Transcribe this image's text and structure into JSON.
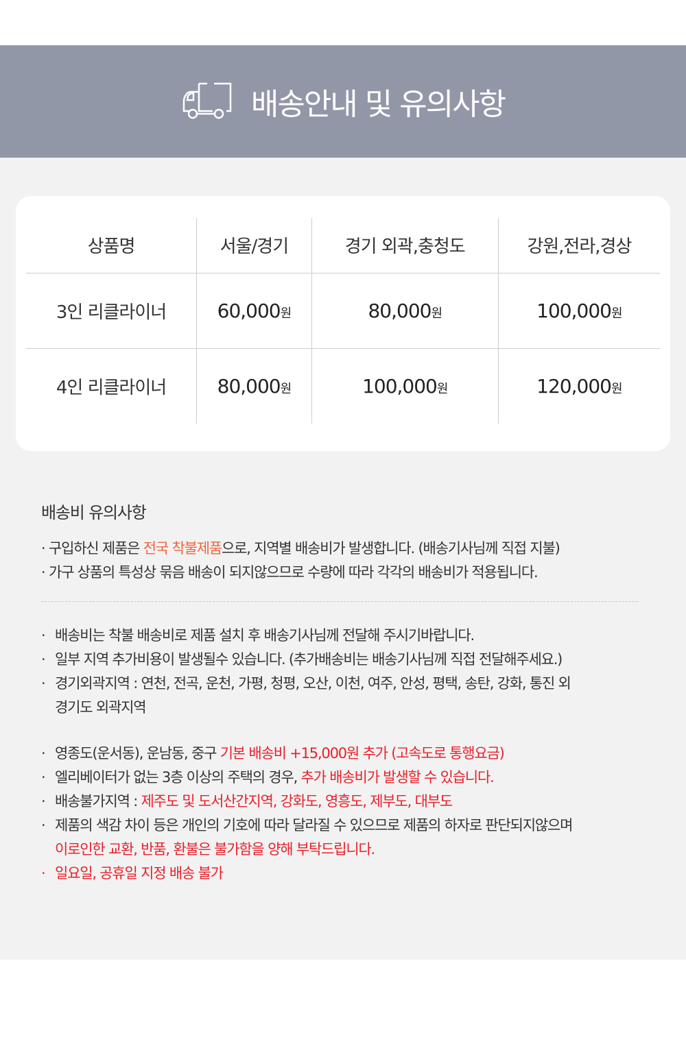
{
  "header": {
    "title": "배송안내 및 유의사항",
    "icon": "truck-icon",
    "background": "#9297a8"
  },
  "table": {
    "headers": [
      "상품명",
      "서울/경기",
      "경기 외곽,충청도",
      "강원,전라,경상"
    ],
    "currency": "원",
    "rows": [
      {
        "product": "3인 리클라이너",
        "prices": [
          "60,000",
          "80,000",
          "100,000"
        ]
      },
      {
        "product": "4인 리클라이너",
        "prices": [
          "80,000",
          "100,000",
          "120,000"
        ]
      }
    ]
  },
  "notice": {
    "title": "배송비 유의사항",
    "line1": {
      "a": "· 구입하신 제품은 ",
      "hl": "전국 착불제품",
      "b": "으로, 지역별 배송비가 발생합니다. (배송기사님께 직접 지불)"
    },
    "line2": "· 가구 상품의 특성상 묶음 배송이 되지않으므로 수량에 따라 각각의 배송비가 적용됩니다."
  },
  "bullets1": [
    "배송비는 착불 배송비로 제품 설치 후 배송기사님께 전달해 주시기바랍니다.",
    "일부 지역 추가비용이 발생될수 있습니다. (추가배송비는 배송기사님께 직접 전달해주세요.)",
    "경기외곽지역 : 연천, 전곡, 운천, 가평, 청평, 오산, 이천, 여주, 안성, 평택, 송탄, 강화, 통진 외"
  ],
  "bullets1_cont": "경기도 외곽지역",
  "bullets2": [
    {
      "a": "영종도(운서동), 운남동, 중구 ",
      "red": "기본 배송비 +15,000원 추가 (고속도로 통행요금)"
    },
    {
      "a": "엘리베이터가 없는 3층 이상의 주택의 경우, ",
      "red": "추가 배송비가 발생할 수 있습니다."
    },
    {
      "a": "배송불가지역 : ",
      "red": "제주도 및 도서산간지역, 강화도, 영흥도, 제부도, 대부도"
    },
    {
      "a": "제품의 색감 차이 등은 개인의 기호에 따라 달라질 수 있으므로 제품의 하자로 판단되지않으며",
      "red": ""
    }
  ],
  "bullets2_cont": "이로인한 교환, 반품, 환불은 불가함을 양해 부탁드립니다.",
  "last_bullet": "일요일, 공휴일 지정 배송 불가",
  "colors": {
    "red": "#e8202a",
    "orange": "#f0643c"
  }
}
